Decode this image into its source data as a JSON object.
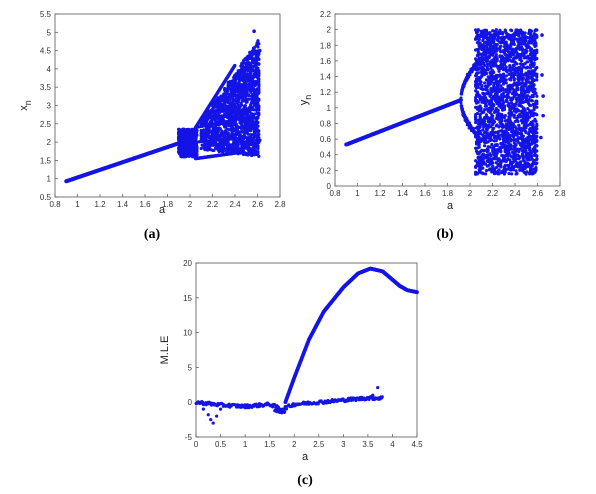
{
  "charts": [
    {
      "caption": "(a)",
      "chart_data": {
        "type": "scatter",
        "title": "",
        "xlabel": "a",
        "ylabel": "x",
        "ylabel_subscript": "n",
        "xlim": [
          0.8,
          2.8
        ],
        "ylim": [
          0.5,
          5.5
        ],
        "xticks": [
          "0.8",
          "1",
          "1.2",
          "1.4",
          "1.6",
          "1.8",
          "2",
          "2.2",
          "2.4",
          "2.6",
          "2.8"
        ],
        "yticks": [
          "0.5",
          "1",
          "1.5",
          "2",
          "2.5",
          "3",
          "3.5",
          "4",
          "4.5",
          "5",
          "5.5"
        ],
        "grid": false,
        "legend": "none",
        "series": [
          {
            "description_points": "bifurcation diagram",
            "line_segment": {
              "a": [
                0.9,
                1.95
              ],
              "x": [
                0.93,
                2.02
              ]
            },
            "bubble": {
              "a": [
                1.9,
                2.06
              ],
              "x_lower": 1.6,
              "x_upper": 2.35
            },
            "period_doubling_branches": {
              "a": [
                2.05,
                2.4
              ],
              "x_lower": [
                1.55,
                1.7
              ],
              "x_upper": [
                2.4,
                4.1
              ]
            },
            "chaotic_band": {
              "a": [
                2.1,
                2.62
              ],
              "x_lower": 1.6,
              "x_upper": 4.85
            },
            "outliers": [
              [
                2.57,
                5.03
              ],
              [
                2.62,
                4.5
              ],
              [
                2.62,
                2.05
              ],
              [
                2.6,
                2.18
              ]
            ]
          }
        ],
        "color": "#1414e6"
      }
    },
    {
      "caption": "(b)",
      "chart_data": {
        "type": "scatter",
        "title": "",
        "xlabel": "a",
        "ylabel": "y",
        "ylabel_subscript": "n",
        "xlim": [
          0.8,
          2.8
        ],
        "ylim": [
          0,
          2.2
        ],
        "xticks": [
          "0.8",
          "1",
          "1.2",
          "1.4",
          "1.6",
          "1.8",
          "2",
          "2.2",
          "2.4",
          "2.6",
          "2.8"
        ],
        "yticks": [
          "0",
          "0.2",
          "0.4",
          "0.6",
          "0.8",
          "1",
          "1.2",
          "1.4",
          "1.6",
          "1.8",
          "2",
          "2.2"
        ],
        "grid": false,
        "legend": "none",
        "series": [
          {
            "description_points": "bifurcation diagram",
            "line_segment": {
              "a": [
                0.9,
                1.92
              ],
              "y": [
                0.53,
                1.1
              ]
            },
            "split_upper": {
              "a": [
                1.92,
                2.08
              ],
              "y": [
                1.1,
                1.6
              ]
            },
            "split_lower": {
              "a": [
                1.92,
                2.08
              ],
              "y": [
                1.1,
                0.62
              ]
            },
            "chaotic_band": {
              "a": [
                2.05,
                2.6
              ],
              "y_lower": 0.15,
              "y_upper": 2.0
            },
            "outliers": [
              [
                2.64,
                1.93
              ],
              [
                2.64,
                1.42
              ],
              [
                2.65,
                1.15
              ],
              [
                2.65,
                0.9
              ],
              [
                2.63,
                0.62
              ]
            ]
          }
        ],
        "color": "#1414e6"
      }
    },
    {
      "caption": "(c)",
      "chart_data": {
        "type": "scatter",
        "title": "",
        "xlabel": "a",
        "ylabel": "M.L.E",
        "xlim": [
          0,
          4.5
        ],
        "ylim": [
          -5,
          20
        ],
        "xticks": [
          "0",
          "0.5",
          "1",
          "1.5",
          "2",
          "2.5",
          "3",
          "3.5",
          "4",
          "4.5"
        ],
        "yticks": [
          "-5",
          "0",
          "5",
          "10",
          "15",
          "20"
        ],
        "grid": false,
        "legend": "none",
        "series": [
          {
            "main_curve": {
              "a": [
                1.82,
                2.0,
                2.3,
                2.6,
                3.0,
                3.3,
                3.55,
                3.8,
                4.0,
                4.15,
                4.3,
                4.5
              ],
              "mle": [
                0.0,
                3.5,
                9.0,
                13.0,
                16.5,
                18.5,
                19.2,
                18.8,
                17.6,
                16.7,
                16.1,
                15.8
              ]
            },
            "baseline_curve": {
              "a": [
                0.0,
                0.5,
                1.0,
                1.5,
                1.75,
                2.0,
                2.5,
                3.0,
                3.5,
                3.8
              ],
              "mle": [
                0.0,
                -0.4,
                -0.6,
                -0.3,
                -1.0,
                -0.3,
                0.0,
                0.3,
                0.6,
                0.6
              ]
            },
            "low_points": [
              [
                0.15,
                -1.0
              ],
              [
                0.25,
                -1.8
              ],
              [
                0.3,
                -2.5
              ],
              [
                0.35,
                -3.0
              ],
              [
                0.42,
                -2.0
              ],
              [
                0.5,
                -1.0
              ]
            ],
            "outliers": [
              [
                3.7,
                2.1
              ],
              [
                3.6,
                1.0
              ]
            ]
          }
        ],
        "color": "#1414e6"
      }
    }
  ]
}
